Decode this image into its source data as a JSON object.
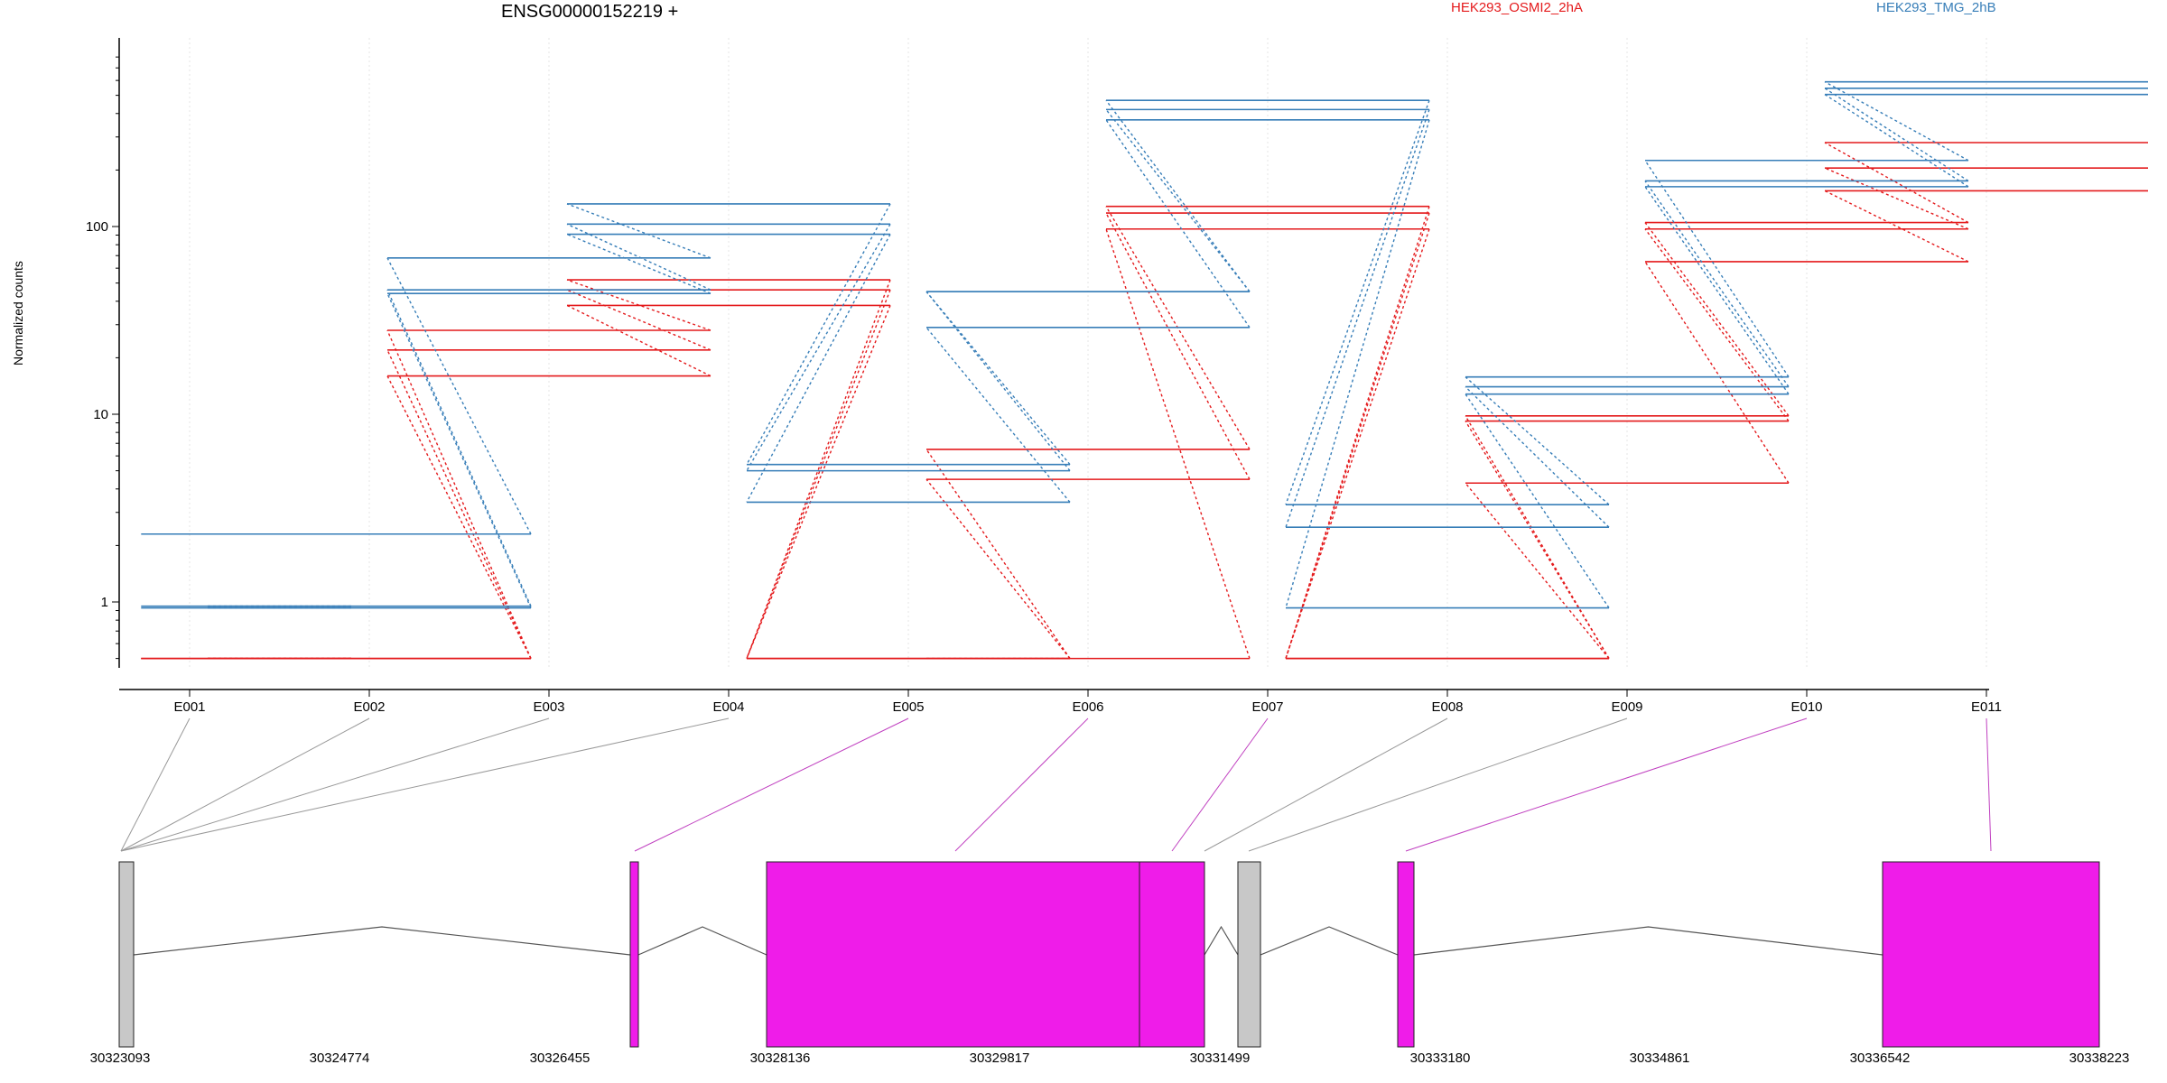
{
  "chart_data": {
    "type": "line",
    "title": "ENSG00000152219 +",
    "xlabel": "",
    "ylabel": "Normalized counts",
    "y_scale": "log",
    "y_ticks": [
      1,
      10,
      100
    ],
    "ylim": [
      0.5,
      800
    ],
    "grid": true,
    "legend_position": "top-right",
    "categories": [
      "E001",
      "E002",
      "E003",
      "E004",
      "E005",
      "E006",
      "E007",
      "E008",
      "E009",
      "E010",
      "E011"
    ],
    "series": [
      {
        "name": "HEK293_OSMI2_2hA",
        "color": "#e41a1c",
        "group": "HEK293_OSMI2_2hA",
        "values": [
          0.5,
          0.5,
          28,
          52,
          0.5,
          6.5,
          128,
          0.5,
          9.8,
          105,
          280
        ]
      },
      {
        "color": "#e41a1c",
        "group": "HEK293_OSMI2_2hA",
        "values": [
          0.5,
          0.5,
          22,
          46,
          0.5,
          4.5,
          118,
          0.5,
          9.2,
          97,
          205
        ]
      },
      {
        "color": "#e41a1c",
        "group": "HEK293_OSMI2_2hA",
        "values": [
          0.5,
          0.5,
          16,
          38,
          0.5,
          0.5,
          97,
          0.5,
          4.3,
          65,
          155
        ]
      },
      {
        "name": "HEK293_TMG_2hB",
        "color": "#377eb8",
        "group": "HEK293_TMG_2hB",
        "values": [
          2.3,
          2.3,
          68,
          132,
          5.4,
          45,
          470,
          3.3,
          15.8,
          225,
          590
        ]
      },
      {
        "color": "#377eb8",
        "group": "HEK293_TMG_2hB",
        "values": [
          0.95,
          0.95,
          46,
          103,
          5.0,
          45,
          420,
          2.5,
          14.0,
          175,
          545
        ]
      },
      {
        "color": "#377eb8",
        "group": "HEK293_TMG_2hB",
        "values": [
          0.93,
          0.93,
          44,
          91,
          3.4,
          29,
          370,
          0.93,
          12.8,
          163,
          505
        ]
      }
    ],
    "gene_model": {
      "coordinate_labels": [
        "30323093",
        "30324774",
        "30326455",
        "30328136",
        "30329817",
        "30331499",
        "30333180",
        "30334861",
        "30336542",
        "30338223"
      ],
      "exon_colors": {
        "differential": "#ef1ce9",
        "other": "#c8c8c8"
      }
    }
  }
}
